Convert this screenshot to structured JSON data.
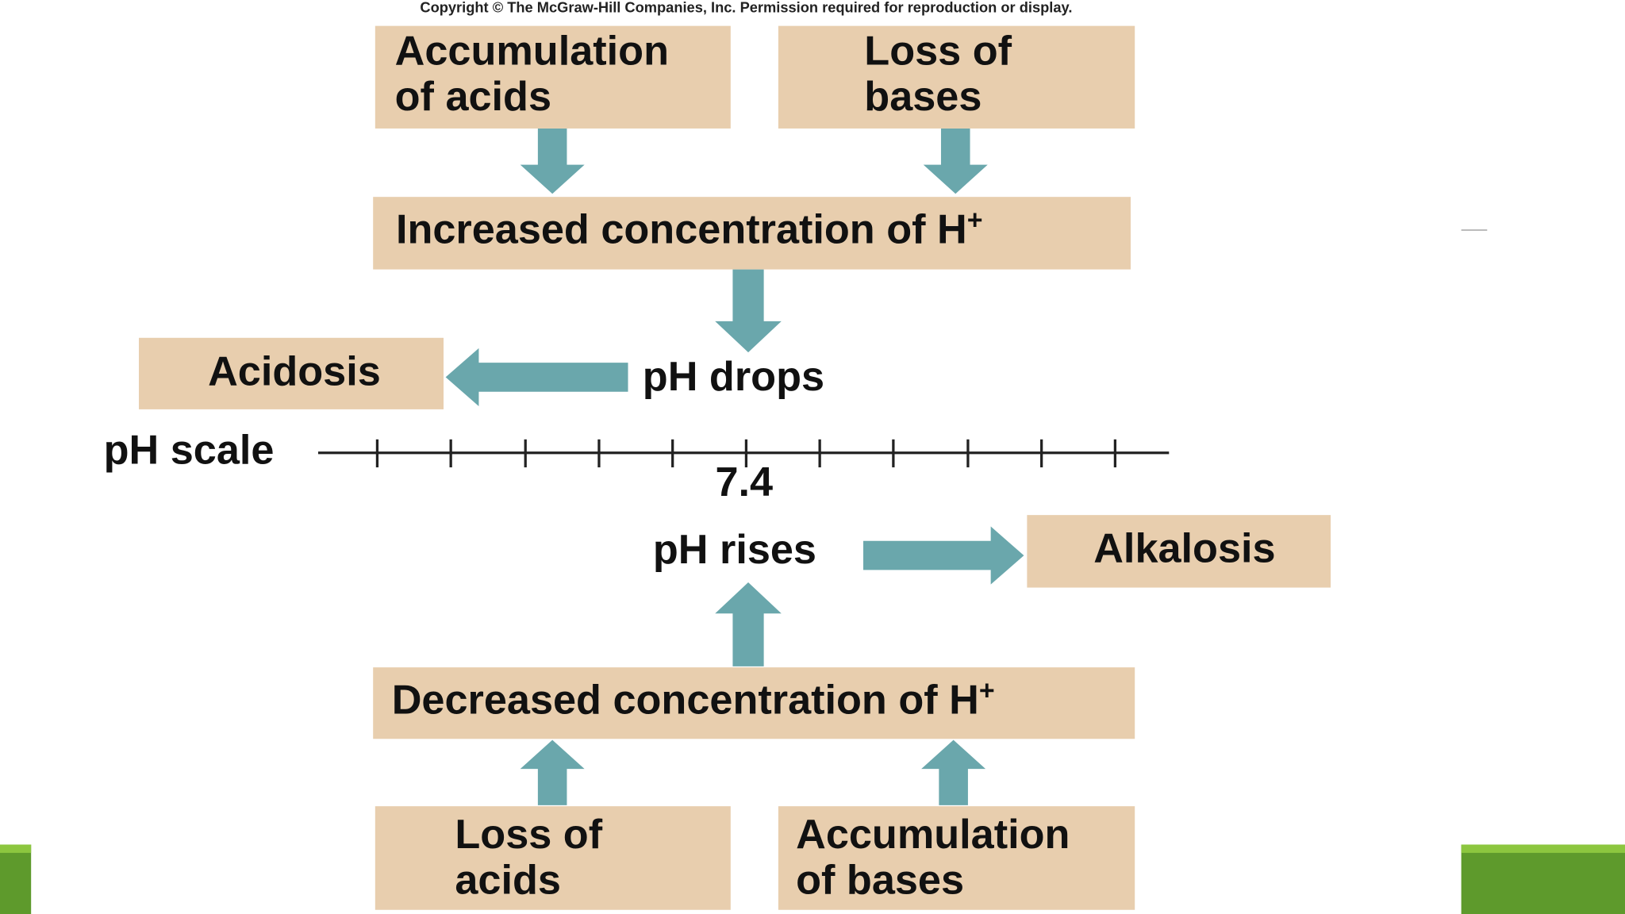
{
  "copyright": "Copyright © The McGraw-Hill Companies, Inc. Permission required for reproduction or display.",
  "nodes": [
    {
      "lines": [
        "Accumulation",
        "of acids"
      ]
    },
    {
      "lines": [
        "Loss of",
        "bases"
      ]
    },
    {
      "label": "Increased concentration of H",
      "superscript": "+"
    },
    {
      "label": "Acidosis"
    },
    {
      "label": "pH drops"
    },
    {
      "label": "pH rises"
    },
    {
      "label": "Alkalosis"
    },
    {
      "label": "Decreased concentration of H",
      "superscript": "+"
    },
    {
      "lines": [
        "Loss of",
        "acids"
      ]
    },
    {
      "lines": [
        "Accumulation",
        "of bases"
      ]
    }
  ],
  "scale": {
    "label": "pH scale",
    "mark_label": "7.4"
  }
}
